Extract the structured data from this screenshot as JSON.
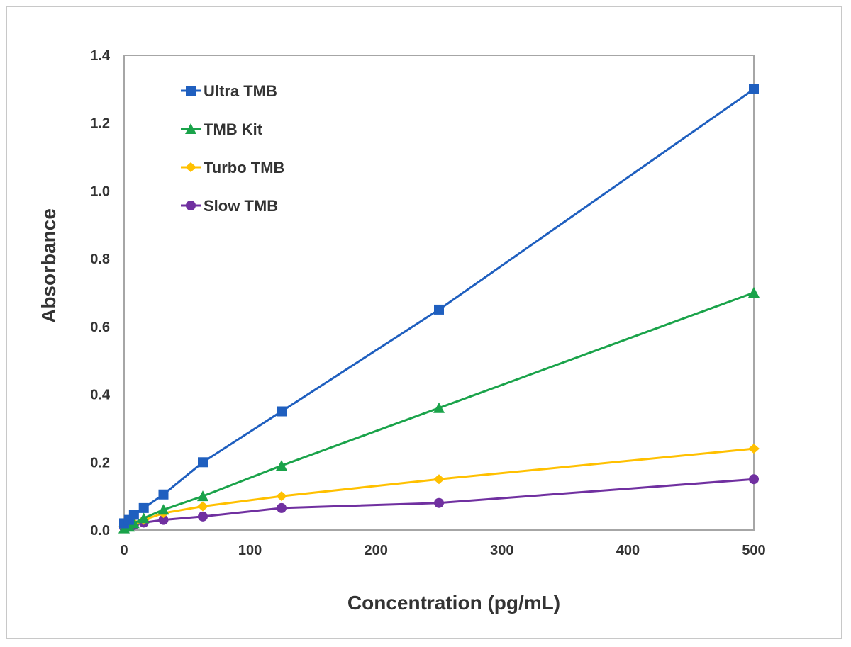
{
  "chart_data": {
    "type": "line",
    "title": "",
    "xlabel": "Concentration (pg/mL)",
    "ylabel": "Absorbance",
    "xlim": [
      0,
      500
    ],
    "ylim": [
      0,
      1.4
    ],
    "xticks": [
      "0",
      "100",
      "200",
      "300",
      "400",
      "500"
    ],
    "yticks": [
      "0.0",
      "0.2",
      "0.4",
      "0.6",
      "0.8",
      "1.0",
      "1.2",
      "1.4"
    ],
    "grid": false,
    "legend_position": "top-left",
    "x": [
      0,
      3.9,
      7.8,
      15.6,
      31.25,
      62.5,
      125,
      250,
      500
    ],
    "series": [
      {
        "name": "Ultra TMB",
        "color": "#1f5fbf",
        "marker": "square",
        "values": [
          0.02,
          0.03,
          0.045,
          0.065,
          0.105,
          0.2,
          0.35,
          0.65,
          1.3
        ]
      },
      {
        "name": "TMB Kit",
        "color": "#1aa34a",
        "marker": "triangle",
        "values": [
          0.005,
          0.01,
          0.02,
          0.035,
          0.06,
          0.1,
          0.19,
          0.36,
          0.7
        ]
      },
      {
        "name": "Turbo TMB",
        "color": "#ffc000",
        "marker": "diamond",
        "values": [
          0.01,
          0.015,
          0.02,
          0.03,
          0.05,
          0.07,
          0.1,
          0.15,
          0.24
        ]
      },
      {
        "name": "Slow TMB",
        "color": "#7030a0",
        "marker": "circle",
        "values": [
          0.008,
          0.01,
          0.015,
          0.022,
          0.03,
          0.04,
          0.065,
          0.08,
          0.15
        ]
      }
    ]
  }
}
